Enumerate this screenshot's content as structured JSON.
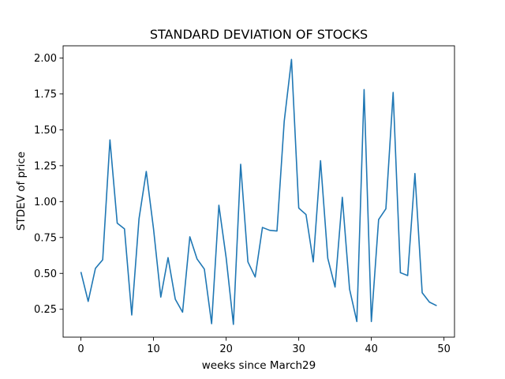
{
  "chart_data": {
    "type": "line",
    "title": "STANDARD DEVIATION OF STOCKS",
    "xlabel": "weeks since March29",
    "ylabel": "STDEV of price",
    "xlim": [
      -2.45,
      51.45
    ],
    "ylim": [
      0.056,
      2.085
    ],
    "xticks": [
      0,
      10,
      20,
      30,
      40,
      50
    ],
    "yticks": [
      0.25,
      0.5,
      0.75,
      1.0,
      1.25,
      1.5,
      1.75,
      2.0
    ],
    "grid": false,
    "line_color": "#1f77b4",
    "series": [
      {
        "x": [
          0,
          1,
          2,
          3,
          4,
          5,
          6,
          7,
          8,
          9,
          10,
          11,
          12,
          13,
          14,
          15,
          16,
          17,
          18,
          19,
          20,
          21,
          22,
          23,
          24,
          25,
          26,
          27,
          28,
          29,
          30,
          31,
          32,
          33,
          34,
          35,
          36,
          37,
          38,
          39,
          40,
          41,
          42,
          43,
          44,
          45,
          46,
          47,
          48,
          49
        ],
        "values": [
          0.51,
          0.305,
          0.535,
          0.595,
          1.43,
          0.85,
          0.81,
          0.21,
          0.88,
          1.21,
          0.81,
          0.335,
          0.61,
          0.32,
          0.23,
          0.755,
          0.6,
          0.53,
          0.15,
          0.975,
          0.61,
          0.145,
          1.26,
          0.58,
          0.475,
          0.82,
          0.8,
          0.795,
          1.56,
          1.99,
          0.955,
          0.91,
          0.58,
          1.285,
          0.605,
          0.405,
          1.03,
          0.39,
          0.165,
          1.78,
          0.165,
          0.875,
          0.95,
          1.76,
          0.505,
          0.485,
          1.195,
          0.365,
          0.3,
          0.275
        ]
      }
    ]
  }
}
